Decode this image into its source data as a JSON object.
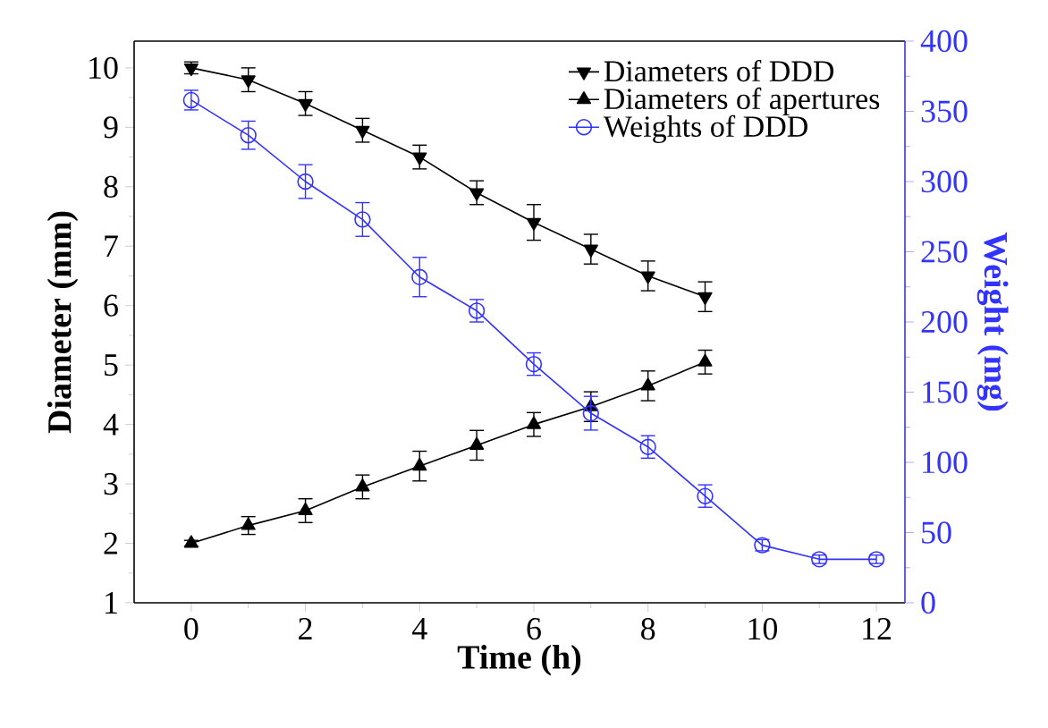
{
  "chart_data": {
    "type": "line",
    "xlabel": "Time (h)",
    "ylabel": "Diameter (mm)",
    "y2label": "Weight (mg)",
    "xlim": [
      -1,
      12.5
    ],
    "xticks": [
      0,
      2,
      4,
      6,
      8,
      10,
      12
    ],
    "ylim": [
      1,
      10.45
    ],
    "yticks": [
      1,
      2,
      3,
      4,
      5,
      6,
      7,
      8,
      9,
      10
    ],
    "y2lim": [
      0,
      400
    ],
    "y2ticks": [
      0,
      50,
      100,
      150,
      200,
      250,
      300,
      350,
      400
    ],
    "legend": "top right",
    "grid": false,
    "line_style": "solid",
    "series": [
      {
        "name": "Diameters of DDD",
        "color": "#000000",
        "marker": "triangle-down",
        "x": [
          0,
          1,
          2,
          3,
          4,
          5,
          6,
          7,
          8,
          9
        ],
        "values": [
          10.0,
          9.8,
          9.4,
          8.95,
          8.5,
          7.9,
          7.4,
          6.95,
          6.5,
          6.15
        ],
        "errors": [
          0.1,
          0.2,
          0.2,
          0.2,
          0.2,
          0.2,
          0.3,
          0.25,
          0.25,
          0.25
        ]
      },
      {
        "name": "Diameters of apertures",
        "color": "#000000",
        "marker": "triangle",
        "x": [
          0,
          1,
          2,
          3,
          4,
          5,
          6,
          7,
          8,
          9
        ],
        "values": [
          2.0,
          2.3,
          2.55,
          2.95,
          3.3,
          3.65,
          4.0,
          4.3,
          4.65,
          5.05
        ],
        "errors": [
          0.05,
          0.15,
          0.2,
          0.2,
          0.25,
          0.25,
          0.2,
          0.25,
          0.25,
          0.2
        ]
      },
      {
        "name": "Weights of DDD",
        "color": "#3333ff",
        "marker": "circle",
        "axis": "y2",
        "x": [
          0,
          1,
          2,
          3,
          4,
          5,
          6,
          7,
          8,
          9,
          10,
          11,
          12
        ],
        "values": [
          358,
          333,
          300,
          273,
          232,
          208,
          170,
          135,
          111,
          76,
          41,
          31,
          31
        ],
        "errors": [
          7,
          10,
          12,
          12,
          14,
          8,
          8,
          12,
          8,
          8,
          4,
          3,
          3
        ]
      }
    ]
  }
}
